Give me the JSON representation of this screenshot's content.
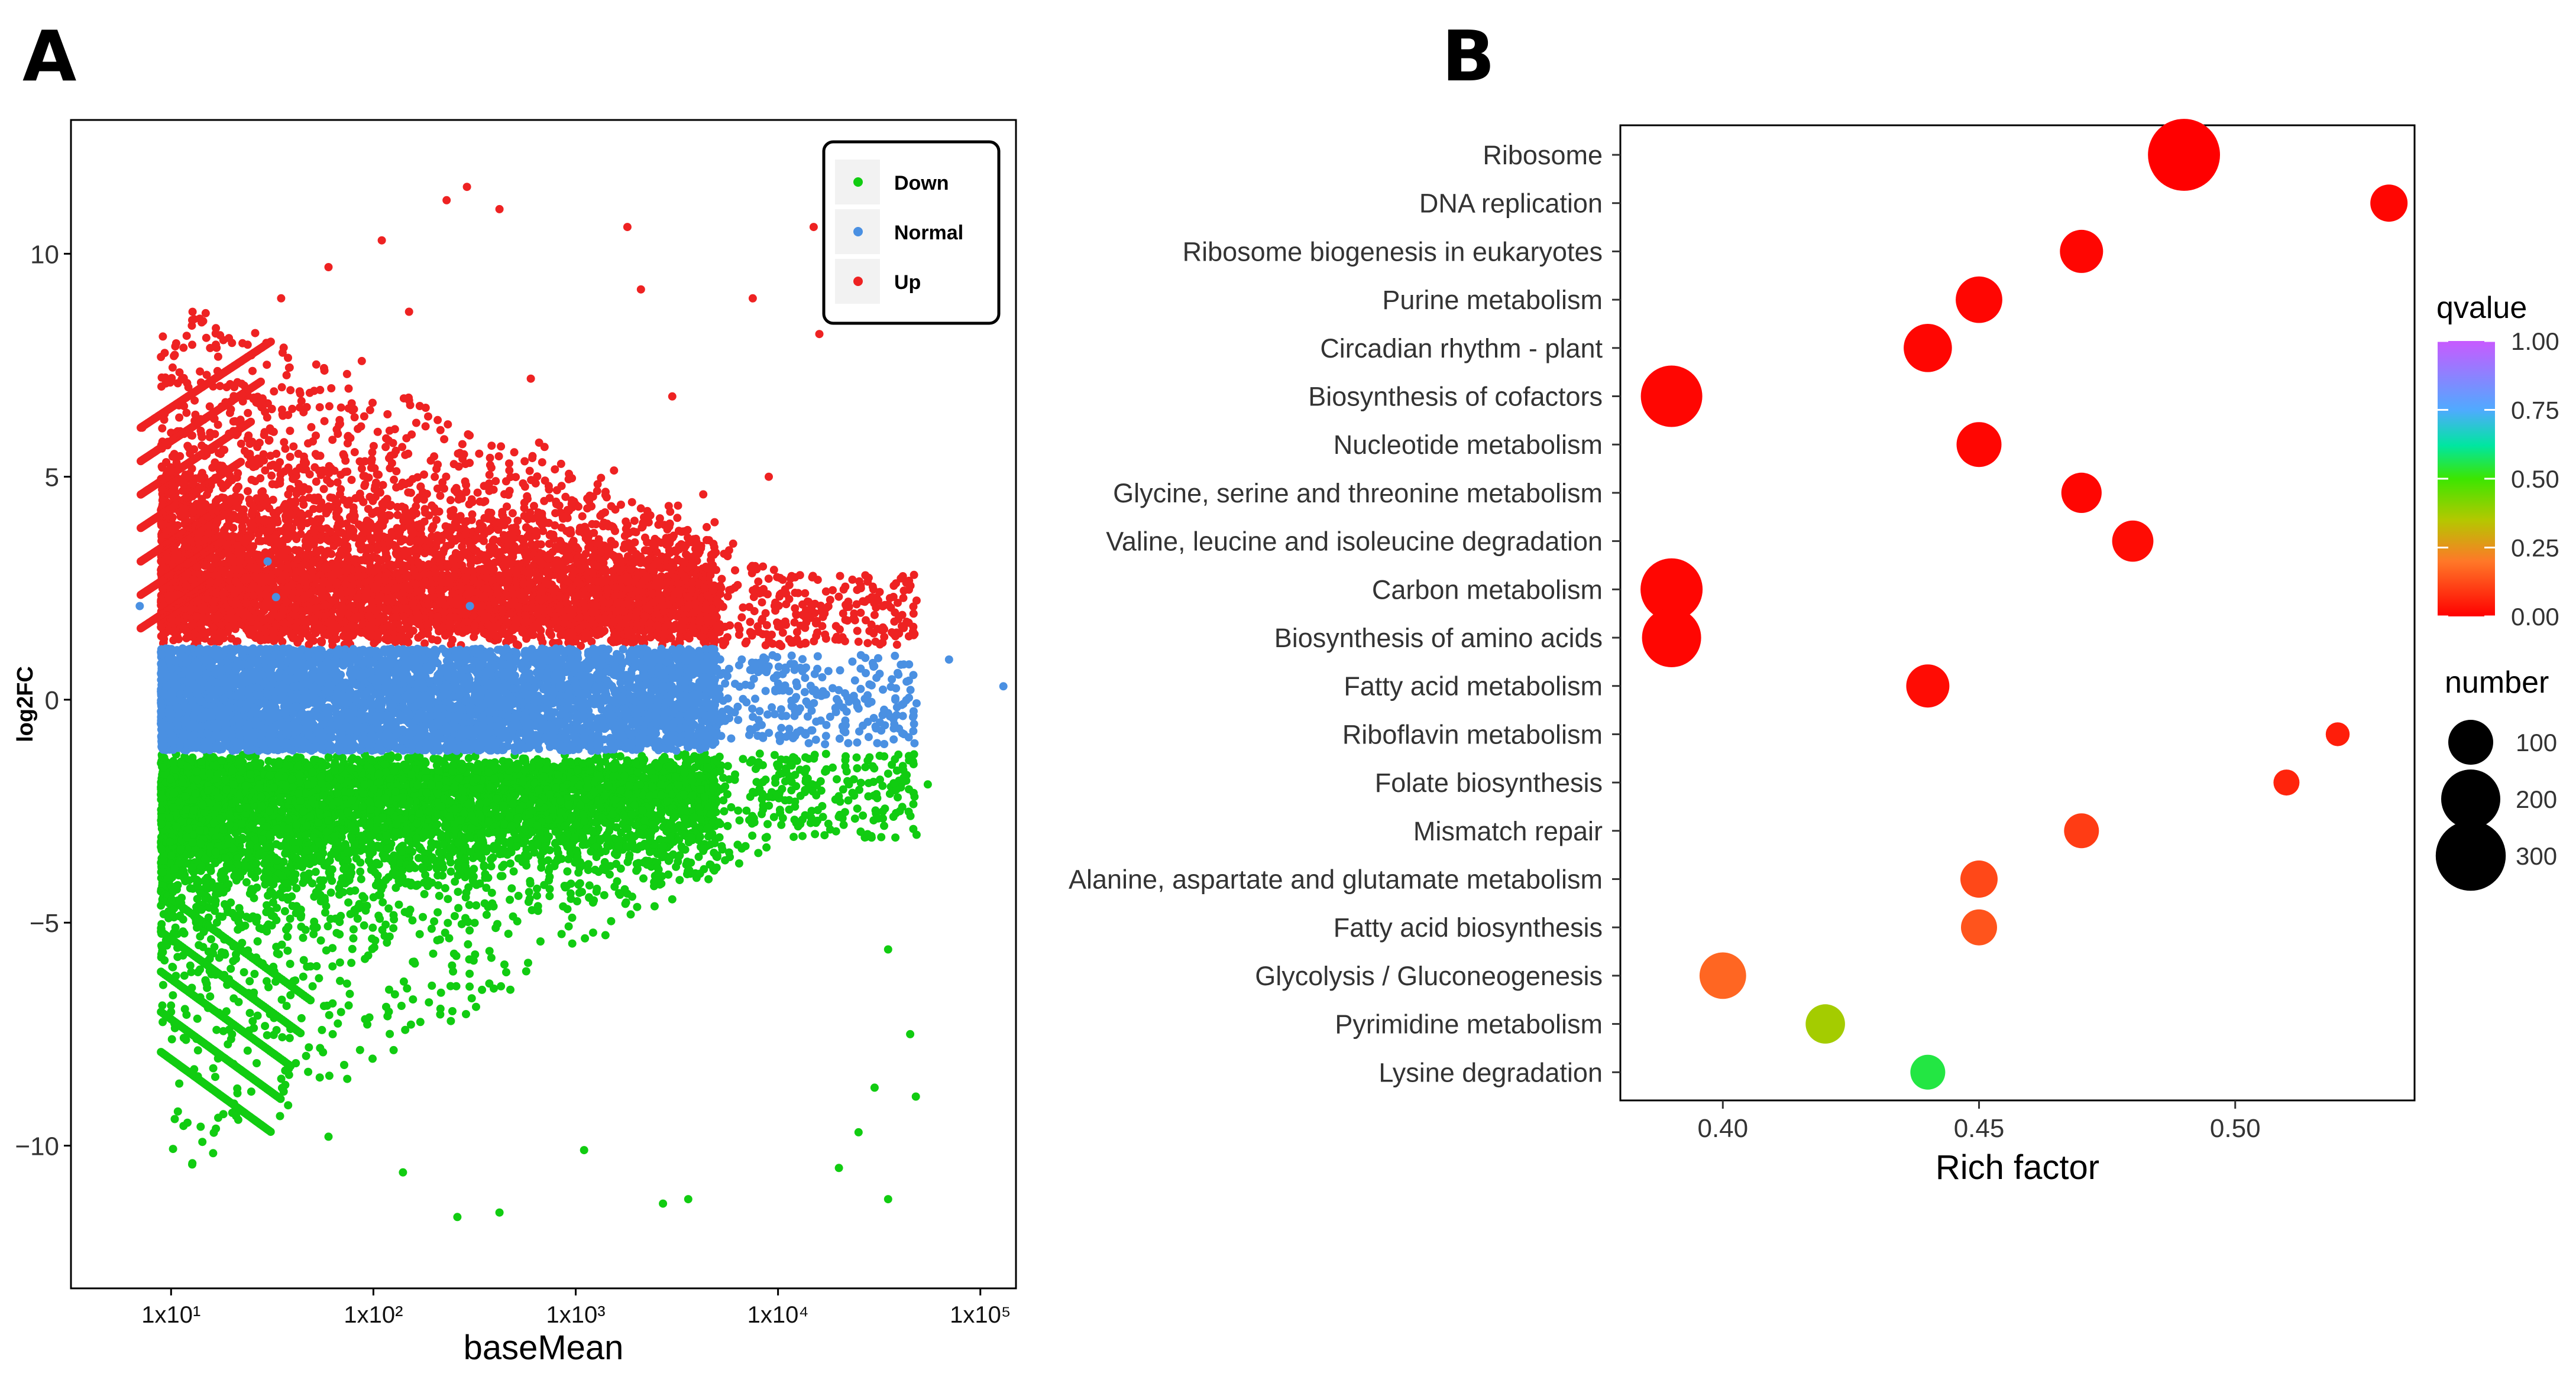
{
  "panels": {
    "a_label": "A",
    "b_label": "B"
  },
  "colors": {
    "down": "#11cc11",
    "normal": "#4a90e2",
    "up": "#ee2222"
  },
  "chart_data": [
    {
      "type": "scatter",
      "title": "",
      "xlabel": "baseMean",
      "ylabel": "log2FC",
      "x_scale": "log10",
      "xlim": [
        3.2,
        150000
      ],
      "ylim": [
        -13.2,
        13
      ],
      "x_ticks": [
        10,
        100,
        1000,
        10000,
        100000
      ],
      "x_tick_labels": [
        "1x10¹",
        "1x10²",
        "1x10³",
        "1x10⁴",
        "1x10⁵"
      ],
      "y_ticks": [
        10,
        5,
        0,
        -5,
        -10
      ],
      "y_tick_labels": [
        "10",
        "5",
        "0",
        "−5",
        "−10"
      ],
      "grid": false,
      "legend": {
        "position": "top-right",
        "entries": [
          "Down",
          "Normal",
          "Up"
        ]
      },
      "series": [
        {
          "name": "Up",
          "color": "#ee2222",
          "description_points": [
            [
              7.2,
              6.1
            ],
            [
              12,
              7.1
            ],
            [
              20,
              8.0
            ],
            [
              35,
              9.0
            ],
            [
              60,
              9.7
            ],
            [
              110,
              10.3
            ],
            [
              230,
              11.2
            ],
            [
              290,
              11.5
            ],
            [
              420,
              11.0
            ],
            [
              1800,
              10.6
            ],
            [
              15000,
              10.6
            ],
            [
              2100,
              9.2
            ],
            [
              7500,
              9.0
            ],
            [
              16000,
              8.2
            ],
            [
              150,
              8.7
            ],
            [
              600,
              7.2
            ],
            [
              3000,
              6.8
            ],
            [
              9000,
              5.0
            ],
            [
              6000,
              3.5
            ],
            [
              14000,
              2.2
            ],
            [
              25000,
              1.3
            ],
            [
              30000,
              1.9
            ]
          ]
        },
        {
          "name": "Normal",
          "color": "#4a90e2",
          "description_points": [
            [
              7,
              2.1
            ],
            [
              30,
              3.1
            ],
            [
              33,
              2.3
            ],
            [
              300,
              2.1
            ],
            [
              12000,
              0.8
            ],
            [
              25000,
              -0.2
            ],
            [
              38000,
              0.0
            ],
            [
              70000,
              0.9
            ],
            [
              130000,
              0.3
            ]
          ]
        },
        {
          "name": "Down",
          "color": "#11cc11",
          "description_points": [
            [
              9,
              -2.2
            ],
            [
              11,
              -4.5
            ],
            [
              10,
              -7.0
            ],
            [
              60,
              -9.8
            ],
            [
              140,
              -10.6
            ],
            [
              260,
              -11.6
            ],
            [
              420,
              -11.5
            ],
            [
              1100,
              -10.1
            ],
            [
              2700,
              -11.3
            ],
            [
              3600,
              -11.2
            ],
            [
              35000,
              -11.2
            ],
            [
              20000,
              -10.5
            ],
            [
              25000,
              -9.7
            ],
            [
              30000,
              -8.7
            ],
            [
              48000,
              -8.9
            ],
            [
              45000,
              -7.5
            ],
            [
              35000,
              -5.6
            ],
            [
              55000,
              -1.9
            ],
            [
              40000,
              -2.5
            ]
          ]
        }
      ]
    },
    {
      "type": "scatter",
      "subtype": "bubble",
      "title": "",
      "xlabel": "Rich factor",
      "ylabel": "",
      "xlim": [
        0.38,
        0.535
      ],
      "x_ticks": [
        0.4,
        0.45,
        0.5
      ],
      "x_tick_labels": [
        "0.40",
        "0.45",
        "0.50"
      ],
      "grid": false,
      "legend": {
        "position": "right",
        "color_title": "qvalue",
        "color_ticks": [
          "1.00",
          "0.75",
          "0.50",
          "0.25",
          "0.00"
        ],
        "size_title": "number",
        "size_ticks": [
          "100",
          "200",
          "300"
        ]
      },
      "categories": [
        "Ribosome",
        "DNA replication",
        "Ribosome biogenesis in eukaryotes",
        "Purine metabolism",
        "Circadian rhythm - plant",
        "Biosynthesis of cofactors",
        "Nucleotide metabolism",
        "Glycine, serine and threonine metabolism",
        "Valine, leucine and isoleucine degradation",
        "Carbon metabolism",
        "Biosynthesis of amino acids",
        "Fatty acid metabolism",
        "Riboflavin metabolism",
        "Folate biosynthesis",
        "Mismatch repair",
        "Alanine, aspartate and glutamate metabolism",
        "Fatty acid biosynthesis",
        "Glycolysis / Gluconeogenesis",
        "Pyrimidine metabolism",
        "Lysine degradation"
      ],
      "rich_factor": [
        0.49,
        0.53,
        0.47,
        0.45,
        0.44,
        0.39,
        0.45,
        0.47,
        0.48,
        0.39,
        0.39,
        0.44,
        0.52,
        0.51,
        0.47,
        0.45,
        0.45,
        0.4,
        0.42,
        0.44
      ],
      "qvalue": [
        0.0,
        0.01,
        0.01,
        0.01,
        0.01,
        0.01,
        0.01,
        0.01,
        0.02,
        0.01,
        0.01,
        0.02,
        0.05,
        0.06,
        0.1,
        0.12,
        0.14,
        0.17,
        0.37,
        0.55
      ],
      "number": [
        320,
        60,
        90,
        110,
        120,
        220,
        100,
        75,
        80,
        225,
        200,
        90,
        15,
        20,
        50,
        60,
        55,
        110,
        70,
        50
      ]
    }
  ]
}
